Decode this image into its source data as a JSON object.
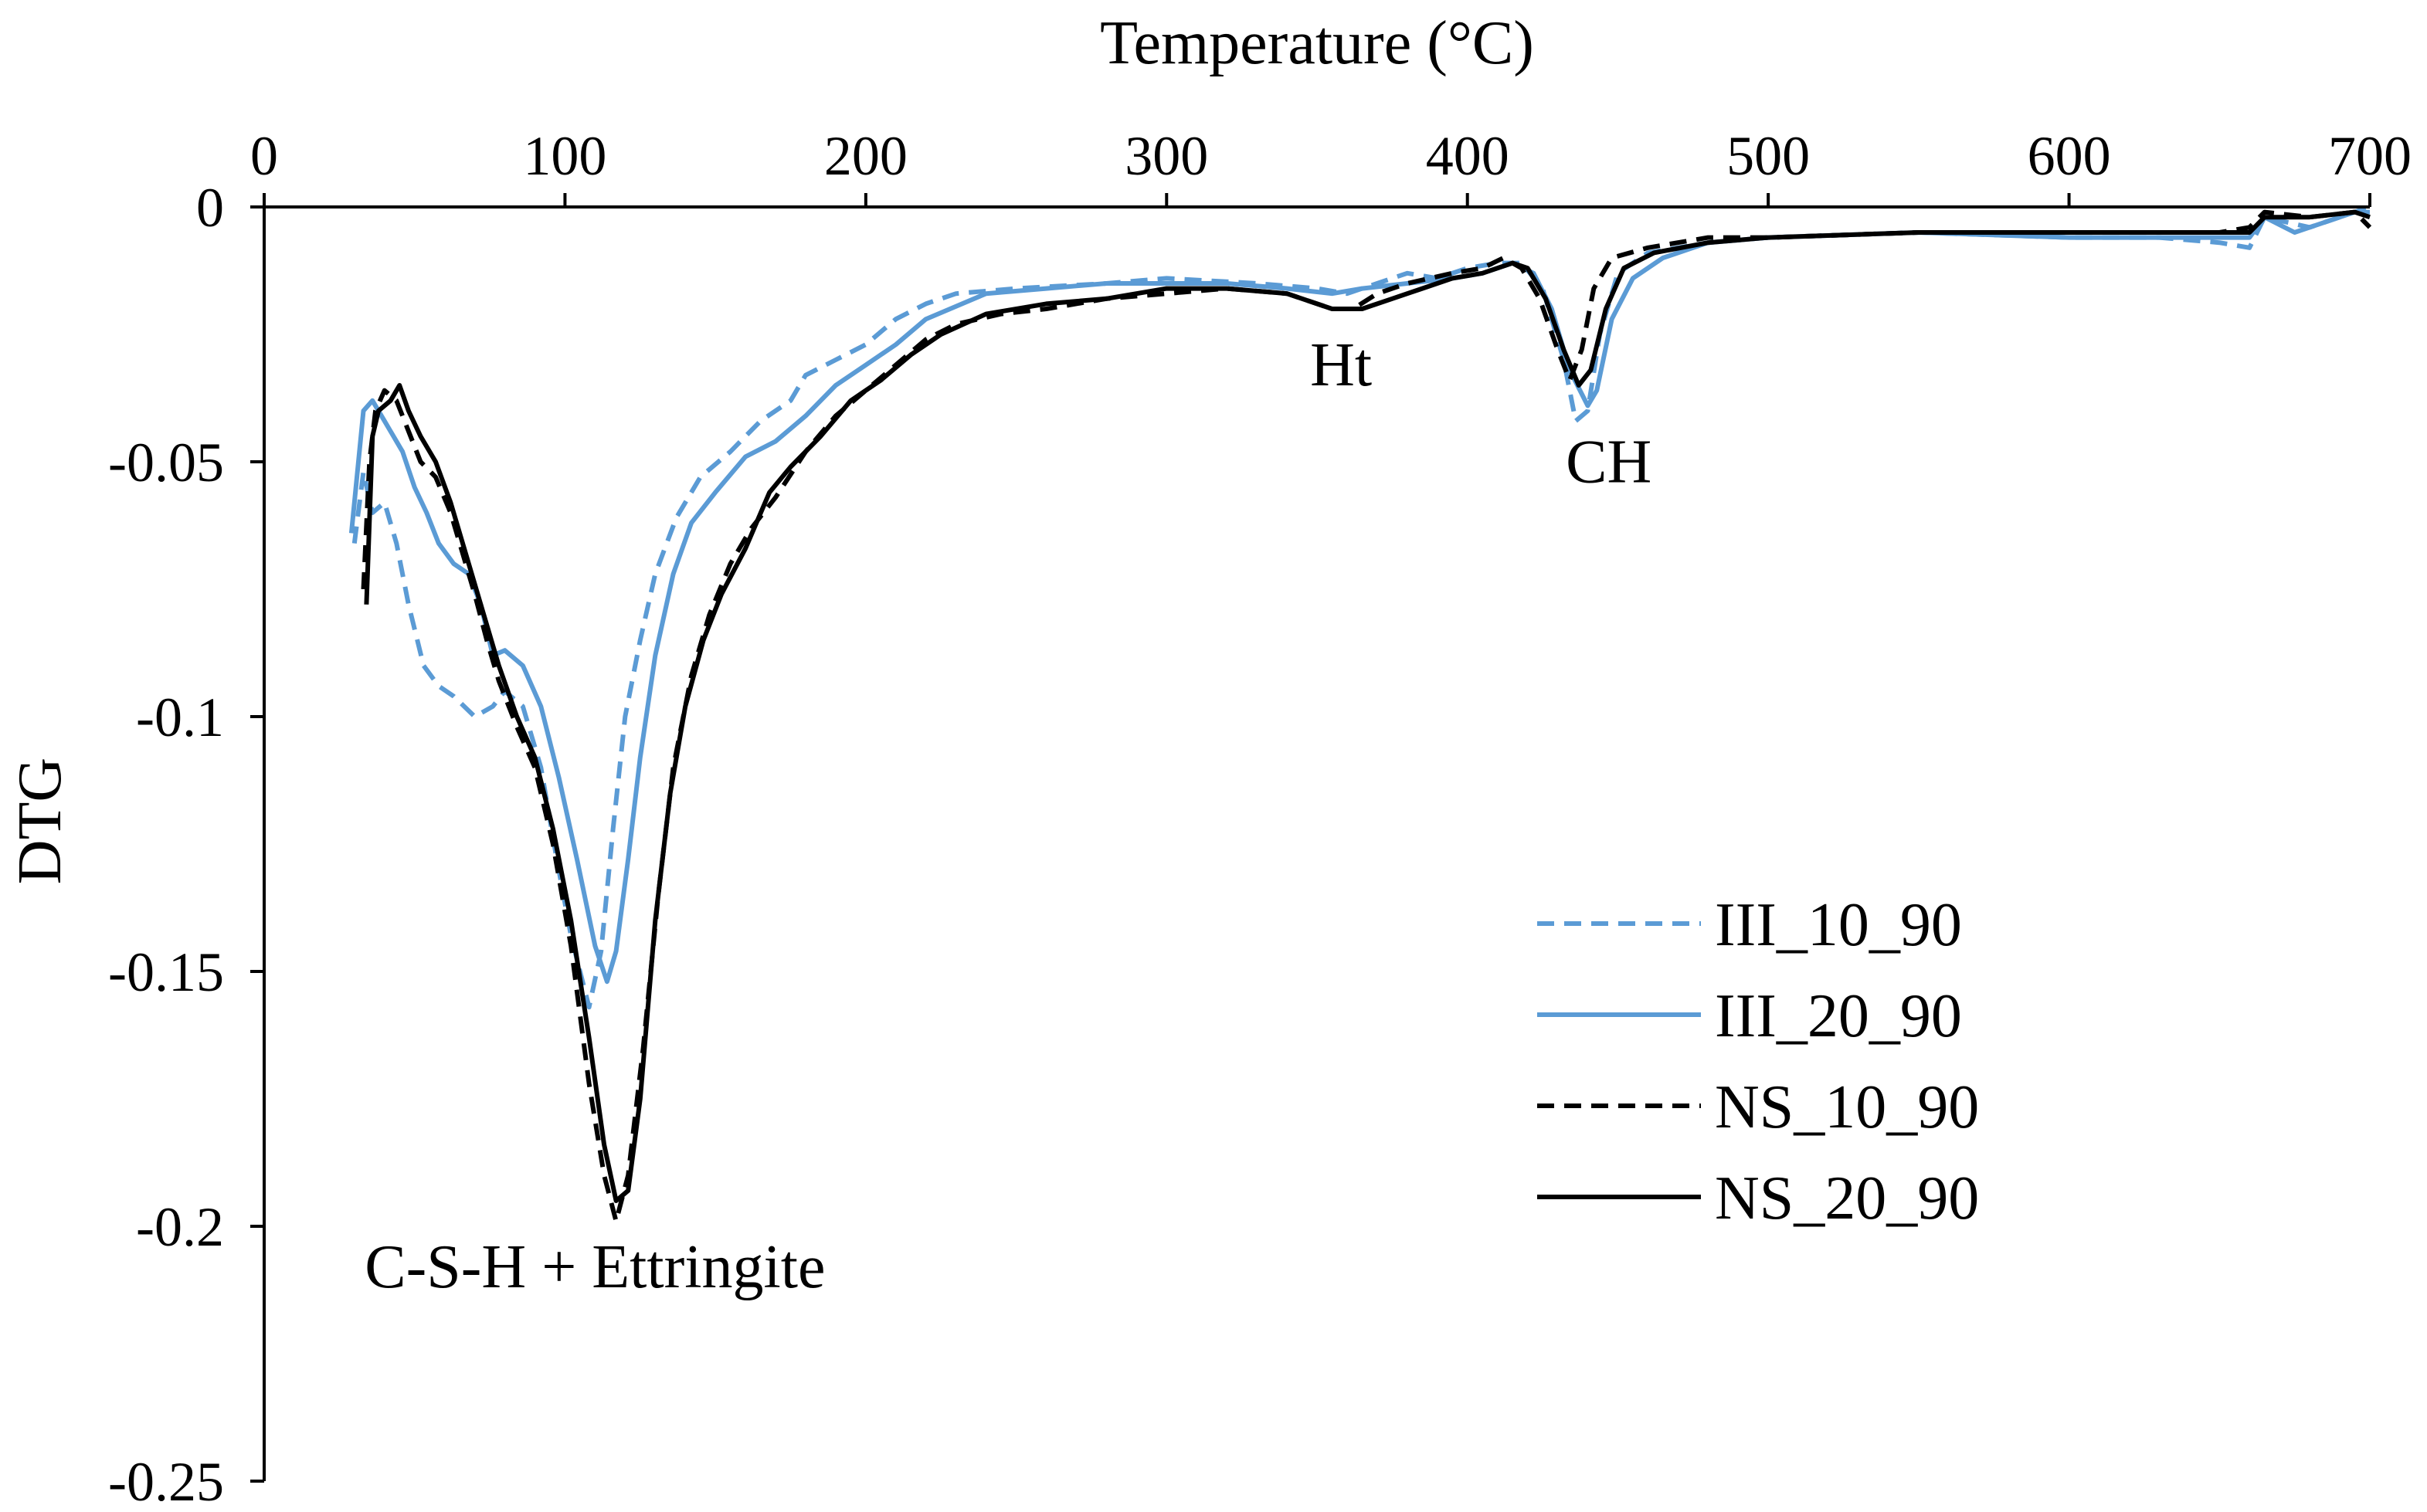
{
  "chart_data": {
    "type": "line",
    "title": "",
    "xlabel": "Temperature (°C)",
    "ylabel": "DTG",
    "xlim": [
      0,
      700
    ],
    "ylim": [
      -0.25,
      0
    ],
    "x_axis_position": "top",
    "grid": false,
    "xticks": [
      0,
      100,
      200,
      300,
      400,
      500,
      600,
      700
    ],
    "xtick_labels": [
      "0",
      "100",
      "200",
      "300",
      "400",
      "500",
      "600",
      "700"
    ],
    "yticks": [
      0,
      -0.05,
      -0.1,
      -0.15,
      -0.2,
      -0.25
    ],
    "ytick_labels": [
      "0",
      "-0.05",
      "-0.1",
      "-0.15",
      "-0.2",
      "-0.25"
    ],
    "legend_position": "right-middle",
    "colors": {
      "blue": "#5b9bd5",
      "black": "#000000"
    },
    "series": [
      {
        "name": "III_10_90",
        "color": "#5b9bd5",
        "dash": "dashed",
        "points": [
          [
            30,
            -0.066
          ],
          [
            33,
            -0.052
          ],
          [
            36,
            -0.06
          ],
          [
            40,
            -0.058
          ],
          [
            44,
            -0.066
          ],
          [
            48,
            -0.078
          ],
          [
            53,
            -0.09
          ],
          [
            58,
            -0.094
          ],
          [
            63,
            -0.096
          ],
          [
            70,
            -0.1
          ],
          [
            76,
            -0.098
          ],
          [
            80,
            -0.095
          ],
          [
            86,
            -0.098
          ],
          [
            92,
            -0.11
          ],
          [
            97,
            -0.127
          ],
          [
            102,
            -0.143
          ],
          [
            108,
            -0.157
          ],
          [
            112,
            -0.146
          ],
          [
            116,
            -0.122
          ],
          [
            120,
            -0.1
          ],
          [
            125,
            -0.085
          ],
          [
            130,
            -0.072
          ],
          [
            137,
            -0.061
          ],
          [
            145,
            -0.053
          ],
          [
            155,
            -0.048
          ],
          [
            165,
            -0.042
          ],
          [
            175,
            -0.038
          ],
          [
            180,
            -0.033
          ],
          [
            190,
            -0.03
          ],
          [
            200,
            -0.027
          ],
          [
            210,
            -0.022
          ],
          [
            220,
            -0.019
          ],
          [
            230,
            -0.017
          ],
          [
            250,
            -0.016
          ],
          [
            280,
            -0.015
          ],
          [
            300,
            -0.014
          ],
          [
            330,
            -0.015
          ],
          [
            350,
            -0.016
          ],
          [
            360,
            -0.017
          ],
          [
            370,
            -0.015
          ],
          [
            380,
            -0.013
          ],
          [
            390,
            -0.014
          ],
          [
            400,
            -0.012
          ],
          [
            410,
            -0.011
          ],
          [
            418,
            -0.011
          ],
          [
            425,
            -0.016
          ],
          [
            432,
            -0.03
          ],
          [
            436,
            -0.042
          ],
          [
            440,
            -0.04
          ],
          [
            444,
            -0.025
          ],
          [
            450,
            -0.013
          ],
          [
            460,
            -0.009
          ],
          [
            480,
            -0.007
          ],
          [
            500,
            -0.006
          ],
          [
            550,
            -0.005
          ],
          [
            600,
            -0.006
          ],
          [
            630,
            -0.006
          ],
          [
            650,
            -0.007
          ],
          [
            660,
            -0.008
          ],
          [
            665,
            -0.002
          ],
          [
            680,
            -0.004
          ],
          [
            690,
            -0.002
          ],
          [
            700,
            0
          ]
        ]
      },
      {
        "name": "III_20_90",
        "color": "#5b9bd5",
        "dash": "solid",
        "points": [
          [
            29,
            -0.064
          ],
          [
            33,
            -0.04
          ],
          [
            36,
            -0.038
          ],
          [
            40,
            -0.042
          ],
          [
            46,
            -0.048
          ],
          [
            50,
            -0.055
          ],
          [
            54,
            -0.06
          ],
          [
            58,
            -0.066
          ],
          [
            63,
            -0.07
          ],
          [
            68,
            -0.072
          ],
          [
            72,
            -0.078
          ],
          [
            76,
            -0.088
          ],
          [
            80,
            -0.087
          ],
          [
            86,
            -0.09
          ],
          [
            92,
            -0.098
          ],
          [
            98,
            -0.112
          ],
          [
            104,
            -0.128
          ],
          [
            110,
            -0.145
          ],
          [
            114,
            -0.152
          ],
          [
            117,
            -0.146
          ],
          [
            121,
            -0.128
          ],
          [
            125,
            -0.108
          ],
          [
            130,
            -0.088
          ],
          [
            136,
            -0.072
          ],
          [
            142,
            -0.062
          ],
          [
            150,
            -0.056
          ],
          [
            160,
            -0.049
          ],
          [
            170,
            -0.046
          ],
          [
            180,
            -0.041
          ],
          [
            190,
            -0.035
          ],
          [
            200,
            -0.031
          ],
          [
            210,
            -0.027
          ],
          [
            220,
            -0.022
          ],
          [
            240,
            -0.017
          ],
          [
            260,
            -0.016
          ],
          [
            280,
            -0.015
          ],
          [
            300,
            -0.015
          ],
          [
            320,
            -0.015
          ],
          [
            340,
            -0.016
          ],
          [
            355,
            -0.017
          ],
          [
            365,
            -0.016
          ],
          [
            380,
            -0.015
          ],
          [
            395,
            -0.014
          ],
          [
            405,
            -0.013
          ],
          [
            415,
            -0.011
          ],
          [
            422,
            -0.013
          ],
          [
            428,
            -0.02
          ],
          [
            434,
            -0.032
          ],
          [
            440,
            -0.039
          ],
          [
            443,
            -0.036
          ],
          [
            448,
            -0.022
          ],
          [
            455,
            -0.014
          ],
          [
            465,
            -0.01
          ],
          [
            480,
            -0.007
          ],
          [
            500,
            -0.006
          ],
          [
            550,
            -0.005
          ],
          [
            600,
            -0.006
          ],
          [
            640,
            -0.006
          ],
          [
            655,
            -0.006
          ],
          [
            660,
            -0.006
          ],
          [
            665,
            -0.002
          ],
          [
            675,
            -0.005
          ],
          [
            685,
            -0.003
          ],
          [
            695,
            -0.001
          ],
          [
            700,
            -0.001
          ]
        ]
      },
      {
        "name": "NS_10_90",
        "color": "#000000",
        "dash": "dashed",
        "points": [
          [
            33,
            -0.075
          ],
          [
            35,
            -0.05
          ],
          [
            37,
            -0.04
          ],
          [
            40,
            -0.036
          ],
          [
            44,
            -0.038
          ],
          [
            48,
            -0.044
          ],
          [
            52,
            -0.05
          ],
          [
            57,
            -0.053
          ],
          [
            62,
            -0.06
          ],
          [
            66,
            -0.068
          ],
          [
            70,
            -0.076
          ],
          [
            74,
            -0.085
          ],
          [
            78,
            -0.093
          ],
          [
            84,
            -0.102
          ],
          [
            90,
            -0.11
          ],
          [
            96,
            -0.125
          ],
          [
            102,
            -0.145
          ],
          [
            108,
            -0.172
          ],
          [
            113,
            -0.19
          ],
          [
            117,
            -0.199
          ],
          [
            121,
            -0.19
          ],
          [
            126,
            -0.165
          ],
          [
            131,
            -0.135
          ],
          [
            136,
            -0.11
          ],
          [
            142,
            -0.092
          ],
          [
            148,
            -0.08
          ],
          [
            155,
            -0.07
          ],
          [
            162,
            -0.063
          ],
          [
            170,
            -0.057
          ],
          [
            180,
            -0.048
          ],
          [
            190,
            -0.041
          ],
          [
            200,
            -0.036
          ],
          [
            210,
            -0.031
          ],
          [
            220,
            -0.026
          ],
          [
            230,
            -0.023
          ],
          [
            245,
            -0.021
          ],
          [
            260,
            -0.02
          ],
          [
            280,
            -0.018
          ],
          [
            300,
            -0.017
          ],
          [
            320,
            -0.016
          ],
          [
            340,
            -0.017
          ],
          [
            355,
            -0.02
          ],
          [
            362,
            -0.02
          ],
          [
            370,
            -0.017
          ],
          [
            380,
            -0.015
          ],
          [
            395,
            -0.013
          ],
          [
            405,
            -0.012
          ],
          [
            412,
            -0.01
          ],
          [
            418,
            -0.012
          ],
          [
            424,
            -0.018
          ],
          [
            430,
            -0.028
          ],
          [
            434,
            -0.034
          ],
          [
            438,
            -0.028
          ],
          [
            442,
            -0.016
          ],
          [
            448,
            -0.01
          ],
          [
            460,
            -0.008
          ],
          [
            480,
            -0.006
          ],
          [
            500,
            -0.006
          ],
          [
            550,
            -0.005
          ],
          [
            600,
            -0.005
          ],
          [
            650,
            -0.005
          ],
          [
            660,
            -0.004
          ],
          [
            665,
            -0.001
          ],
          [
            680,
            -0.002
          ],
          [
            695,
            -0.001
          ],
          [
            700,
            -0.004
          ]
        ]
      },
      {
        "name": "NS_20_90",
        "color": "#000000",
        "dash": "solid",
        "points": [
          [
            34,
            -0.078
          ],
          [
            36,
            -0.045
          ],
          [
            38,
            -0.04
          ],
          [
            42,
            -0.038
          ],
          [
            45,
            -0.035
          ],
          [
            48,
            -0.04
          ],
          [
            52,
            -0.045
          ],
          [
            57,
            -0.05
          ],
          [
            62,
            -0.058
          ],
          [
            66,
            -0.066
          ],
          [
            70,
            -0.074
          ],
          [
            74,
            -0.082
          ],
          [
            78,
            -0.09
          ],
          [
            84,
            -0.1
          ],
          [
            90,
            -0.108
          ],
          [
            96,
            -0.122
          ],
          [
            102,
            -0.14
          ],
          [
            108,
            -0.163
          ],
          [
            113,
            -0.184
          ],
          [
            117,
            -0.195
          ],
          [
            121,
            -0.193
          ],
          [
            125,
            -0.175
          ],
          [
            130,
            -0.14
          ],
          [
            135,
            -0.115
          ],
          [
            140,
            -0.098
          ],
          [
            146,
            -0.085
          ],
          [
            152,
            -0.076
          ],
          [
            160,
            -0.067
          ],
          [
            168,
            -0.056
          ],
          [
            175,
            -0.051
          ],
          [
            185,
            -0.045
          ],
          [
            195,
            -0.038
          ],
          [
            205,
            -0.034
          ],
          [
            215,
            -0.029
          ],
          [
            225,
            -0.025
          ],
          [
            240,
            -0.021
          ],
          [
            260,
            -0.019
          ],
          [
            280,
            -0.018
          ],
          [
            300,
            -0.016
          ],
          [
            320,
            -0.016
          ],
          [
            340,
            -0.017
          ],
          [
            355,
            -0.02
          ],
          [
            365,
            -0.02
          ],
          [
            375,
            -0.018
          ],
          [
            385,
            -0.016
          ],
          [
            395,
            -0.014
          ],
          [
            405,
            -0.013
          ],
          [
            415,
            -0.011
          ],
          [
            420,
            -0.012
          ],
          [
            426,
            -0.018
          ],
          [
            432,
            -0.028
          ],
          [
            437,
            -0.035
          ],
          [
            441,
            -0.032
          ],
          [
            446,
            -0.02
          ],
          [
            452,
            -0.012
          ],
          [
            462,
            -0.009
          ],
          [
            480,
            -0.007
          ],
          [
            500,
            -0.006
          ],
          [
            550,
            -0.005
          ],
          [
            600,
            -0.005
          ],
          [
            650,
            -0.005
          ],
          [
            660,
            -0.005
          ],
          [
            665,
            -0.002
          ],
          [
            680,
            -0.002
          ],
          [
            695,
            -0.001
          ],
          [
            700,
            -0.002
          ]
        ]
      }
    ],
    "annotations": [
      {
        "text": "C-S-H + Ettringite",
        "x": 110,
        "y": -0.212
      },
      {
        "text": "Ht",
        "x": 358,
        "y": -0.035
      },
      {
        "text": "CH",
        "x": 447,
        "y": -0.054
      }
    ]
  }
}
